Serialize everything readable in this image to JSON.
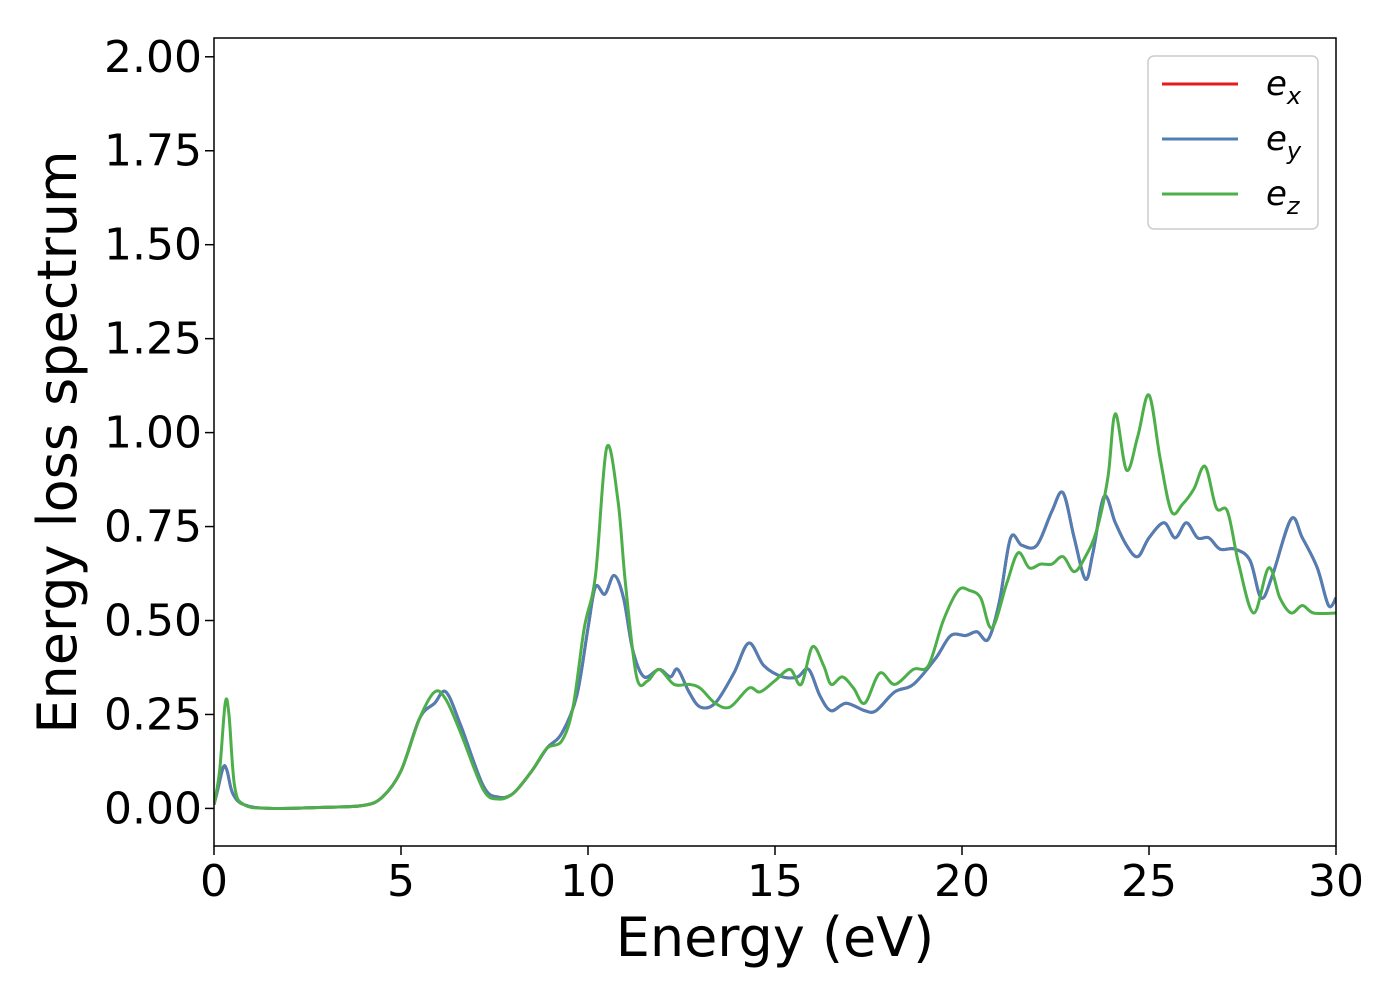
{
  "chart_data": {
    "type": "line",
    "title": "",
    "xlabel": "Energy (eV)",
    "ylabel": "Energy loss spectrum",
    "xlim": [
      0,
      30
    ],
    "ylim": [
      -0.1,
      2.05
    ],
    "xticks": [
      "0",
      "5",
      "10",
      "15",
      "20",
      "25",
      "30"
    ],
    "yticks": [
      "0.00",
      "0.25",
      "0.50",
      "0.75",
      "1.00",
      "1.25",
      "1.50",
      "1.75",
      "2.00"
    ],
    "grid": false,
    "legend_position": "top-right",
    "series": [
      {
        "name": "e",
        "subscript": "x",
        "color": "#e41a1c",
        "points": [
          [
            0,
            0.01
          ],
          [
            0.1,
            0.05
          ],
          [
            0.25,
            0.11
          ],
          [
            0.35,
            0.1
          ],
          [
            0.5,
            0.04
          ],
          [
            0.8,
            0.01
          ],
          [
            1.5,
            0.0
          ],
          [
            3,
            0.003
          ],
          [
            4,
            0.008
          ],
          [
            4.5,
            0.03
          ],
          [
            5,
            0.1
          ],
          [
            5.5,
            0.24
          ],
          [
            5.9,
            0.28
          ],
          [
            6.2,
            0.31
          ],
          [
            6.6,
            0.22
          ],
          [
            7.2,
            0.06
          ],
          [
            7.6,
            0.03
          ],
          [
            8,
            0.04
          ],
          [
            8.5,
            0.1
          ],
          [
            8.9,
            0.16
          ],
          [
            9.3,
            0.2
          ],
          [
            9.7,
            0.3
          ],
          [
            10,
            0.48
          ],
          [
            10.2,
            0.59
          ],
          [
            10.45,
            0.57
          ],
          [
            10.7,
            0.62
          ],
          [
            10.95,
            0.56
          ],
          [
            11.2,
            0.42
          ],
          [
            11.5,
            0.35
          ],
          [
            11.9,
            0.37
          ],
          [
            12.2,
            0.35
          ],
          [
            12.4,
            0.37
          ],
          [
            12.7,
            0.31
          ],
          [
            13,
            0.27
          ],
          [
            13.4,
            0.28
          ],
          [
            13.9,
            0.36
          ],
          [
            14.3,
            0.44
          ],
          [
            14.7,
            0.38
          ],
          [
            15.2,
            0.35
          ],
          [
            15.6,
            0.35
          ],
          [
            15.9,
            0.37
          ],
          [
            16.2,
            0.3
          ],
          [
            16.5,
            0.26
          ],
          [
            16.9,
            0.28
          ],
          [
            17.4,
            0.26
          ],
          [
            17.7,
            0.26
          ],
          [
            18.2,
            0.31
          ],
          [
            18.7,
            0.33
          ],
          [
            19.3,
            0.4
          ],
          [
            19.7,
            0.46
          ],
          [
            20.1,
            0.46
          ],
          [
            20.4,
            0.47
          ],
          [
            20.7,
            0.45
          ],
          [
            21.0,
            0.55
          ],
          [
            21.3,
            0.72
          ],
          [
            21.6,
            0.7
          ],
          [
            22.0,
            0.7
          ],
          [
            22.4,
            0.79
          ],
          [
            22.7,
            0.84
          ],
          [
            23.0,
            0.72
          ],
          [
            23.3,
            0.61
          ],
          [
            23.5,
            0.68
          ],
          [
            23.8,
            0.83
          ],
          [
            24.1,
            0.76
          ],
          [
            24.4,
            0.7
          ],
          [
            24.7,
            0.67
          ],
          [
            25.0,
            0.72
          ],
          [
            25.4,
            0.76
          ],
          [
            25.7,
            0.72
          ],
          [
            26.0,
            0.76
          ],
          [
            26.3,
            0.72
          ],
          [
            26.6,
            0.72
          ],
          [
            26.9,
            0.69
          ],
          [
            27.3,
            0.69
          ],
          [
            27.7,
            0.66
          ],
          [
            28.0,
            0.56
          ],
          [
            28.3,
            0.62
          ],
          [
            28.8,
            0.77
          ],
          [
            29.1,
            0.72
          ],
          [
            29.5,
            0.64
          ],
          [
            29.8,
            0.54
          ],
          [
            30,
            0.56
          ]
        ]
      },
      {
        "name": "e",
        "subscript": "y",
        "color": "#4f7fb5",
        "points": [
          [
            0,
            0.01
          ],
          [
            0.1,
            0.05
          ],
          [
            0.25,
            0.11
          ],
          [
            0.35,
            0.1
          ],
          [
            0.5,
            0.04
          ],
          [
            0.8,
            0.01
          ],
          [
            1.5,
            0.0
          ],
          [
            3,
            0.003
          ],
          [
            4,
            0.008
          ],
          [
            4.5,
            0.03
          ],
          [
            5,
            0.1
          ],
          [
            5.5,
            0.24
          ],
          [
            5.9,
            0.28
          ],
          [
            6.2,
            0.31
          ],
          [
            6.6,
            0.22
          ],
          [
            7.2,
            0.06
          ],
          [
            7.6,
            0.03
          ],
          [
            8,
            0.04
          ],
          [
            8.5,
            0.1
          ],
          [
            8.9,
            0.16
          ],
          [
            9.3,
            0.2
          ],
          [
            9.7,
            0.3
          ],
          [
            10,
            0.48
          ],
          [
            10.2,
            0.59
          ],
          [
            10.45,
            0.57
          ],
          [
            10.7,
            0.62
          ],
          [
            10.95,
            0.56
          ],
          [
            11.2,
            0.42
          ],
          [
            11.5,
            0.35
          ],
          [
            11.9,
            0.37
          ],
          [
            12.2,
            0.35
          ],
          [
            12.4,
            0.37
          ],
          [
            12.7,
            0.31
          ],
          [
            13,
            0.27
          ],
          [
            13.4,
            0.28
          ],
          [
            13.9,
            0.36
          ],
          [
            14.3,
            0.44
          ],
          [
            14.7,
            0.38
          ],
          [
            15.2,
            0.35
          ],
          [
            15.6,
            0.35
          ],
          [
            15.9,
            0.37
          ],
          [
            16.2,
            0.3
          ],
          [
            16.5,
            0.26
          ],
          [
            16.9,
            0.28
          ],
          [
            17.4,
            0.26
          ],
          [
            17.7,
            0.26
          ],
          [
            18.2,
            0.31
          ],
          [
            18.7,
            0.33
          ],
          [
            19.3,
            0.4
          ],
          [
            19.7,
            0.46
          ],
          [
            20.1,
            0.46
          ],
          [
            20.4,
            0.47
          ],
          [
            20.7,
            0.45
          ],
          [
            21.0,
            0.55
          ],
          [
            21.3,
            0.72
          ],
          [
            21.6,
            0.7
          ],
          [
            22.0,
            0.7
          ],
          [
            22.4,
            0.79
          ],
          [
            22.7,
            0.84
          ],
          [
            23.0,
            0.72
          ],
          [
            23.3,
            0.61
          ],
          [
            23.5,
            0.68
          ],
          [
            23.8,
            0.83
          ],
          [
            24.1,
            0.76
          ],
          [
            24.4,
            0.7
          ],
          [
            24.7,
            0.67
          ],
          [
            25.0,
            0.72
          ],
          [
            25.4,
            0.76
          ],
          [
            25.7,
            0.72
          ],
          [
            26.0,
            0.76
          ],
          [
            26.3,
            0.72
          ],
          [
            26.6,
            0.72
          ],
          [
            26.9,
            0.69
          ],
          [
            27.3,
            0.69
          ],
          [
            27.7,
            0.66
          ],
          [
            28.0,
            0.56
          ],
          [
            28.3,
            0.62
          ],
          [
            28.8,
            0.77
          ],
          [
            29.1,
            0.72
          ],
          [
            29.5,
            0.64
          ],
          [
            29.8,
            0.54
          ],
          [
            30,
            0.56
          ]
        ]
      },
      {
        "name": "e",
        "subscript": "z",
        "color": "#4daf4a",
        "points": [
          [
            0,
            0.01
          ],
          [
            0.15,
            0.1
          ],
          [
            0.3,
            0.28
          ],
          [
            0.4,
            0.25
          ],
          [
            0.55,
            0.06
          ],
          [
            0.8,
            0.01
          ],
          [
            1.5,
            0.0
          ],
          [
            3,
            0.003
          ],
          [
            4,
            0.008
          ],
          [
            4.5,
            0.03
          ],
          [
            5,
            0.1
          ],
          [
            5.5,
            0.24
          ],
          [
            5.9,
            0.31
          ],
          [
            6.2,
            0.29
          ],
          [
            6.6,
            0.2
          ],
          [
            7.2,
            0.05
          ],
          [
            7.6,
            0.025
          ],
          [
            8,
            0.04
          ],
          [
            8.5,
            0.1
          ],
          [
            8.9,
            0.16
          ],
          [
            9.3,
            0.18
          ],
          [
            9.6,
            0.27
          ],
          [
            9.9,
            0.48
          ],
          [
            10.2,
            0.62
          ],
          [
            10.5,
            0.96
          ],
          [
            10.8,
            0.82
          ],
          [
            11.0,
            0.6
          ],
          [
            11.3,
            0.35
          ],
          [
            11.6,
            0.34
          ],
          [
            11.9,
            0.37
          ],
          [
            12.3,
            0.33
          ],
          [
            12.7,
            0.33
          ],
          [
            13.0,
            0.32
          ],
          [
            13.4,
            0.28
          ],
          [
            13.8,
            0.27
          ],
          [
            14.3,
            0.32
          ],
          [
            14.6,
            0.31
          ],
          [
            15.0,
            0.34
          ],
          [
            15.4,
            0.37
          ],
          [
            15.7,
            0.33
          ],
          [
            16.0,
            0.43
          ],
          [
            16.3,
            0.38
          ],
          [
            16.5,
            0.33
          ],
          [
            16.8,
            0.35
          ],
          [
            17.1,
            0.32
          ],
          [
            17.4,
            0.28
          ],
          [
            17.8,
            0.36
          ],
          [
            18.2,
            0.33
          ],
          [
            18.7,
            0.37
          ],
          [
            19.1,
            0.38
          ],
          [
            19.5,
            0.5
          ],
          [
            19.9,
            0.58
          ],
          [
            20.2,
            0.58
          ],
          [
            20.5,
            0.56
          ],
          [
            20.8,
            0.48
          ],
          [
            21.2,
            0.6
          ],
          [
            21.5,
            0.68
          ],
          [
            21.8,
            0.64
          ],
          [
            22.1,
            0.65
          ],
          [
            22.4,
            0.65
          ],
          [
            22.7,
            0.67
          ],
          [
            23.0,
            0.63
          ],
          [
            23.3,
            0.67
          ],
          [
            23.6,
            0.74
          ],
          [
            23.9,
            0.88
          ],
          [
            24.1,
            1.05
          ],
          [
            24.4,
            0.9
          ],
          [
            24.7,
            0.99
          ],
          [
            25.0,
            1.1
          ],
          [
            25.3,
            0.93
          ],
          [
            25.6,
            0.79
          ],
          [
            25.9,
            0.81
          ],
          [
            26.2,
            0.85
          ],
          [
            26.5,
            0.91
          ],
          [
            26.8,
            0.8
          ],
          [
            27.1,
            0.79
          ],
          [
            27.4,
            0.65
          ],
          [
            27.8,
            0.52
          ],
          [
            28.2,
            0.64
          ],
          [
            28.5,
            0.56
          ],
          [
            28.8,
            0.52
          ],
          [
            29.1,
            0.54
          ],
          [
            29.4,
            0.52
          ],
          [
            30,
            0.52
          ]
        ]
      }
    ]
  }
}
